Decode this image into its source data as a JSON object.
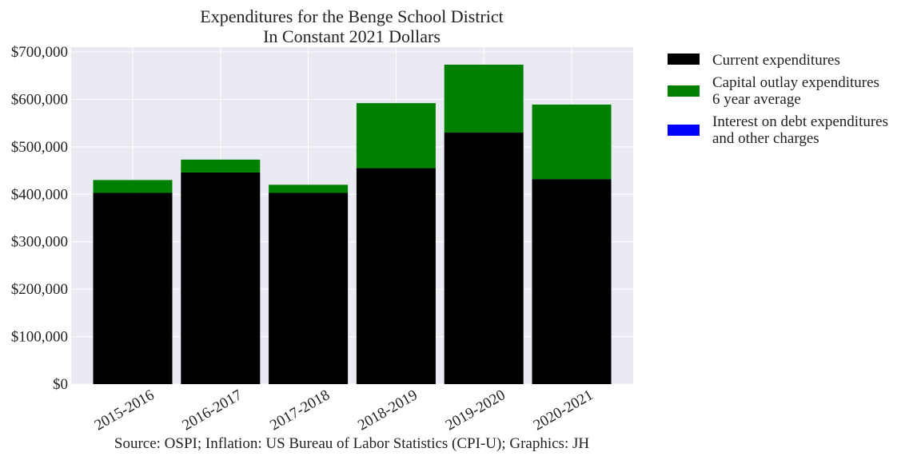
{
  "chart_data": {
    "type": "bar",
    "stacked": true,
    "title": [
      "Expenditures for the Benge School District",
      "In Constant 2021 Dollars"
    ],
    "categories": [
      "2015-2016",
      "2016-2017",
      "2017-2018",
      "2018-2019",
      "2019-2020",
      "2020-2021"
    ],
    "series": [
      {
        "name": "Current expenditures",
        "color": "#000000",
        "values": [
          403000,
          446000,
          403000,
          455000,
          530000,
          432000
        ]
      },
      {
        "name": "Capital outlay expenditures",
        "name_line2": "6 year average",
        "color": "#008000",
        "values": [
          27000,
          27000,
          17000,
          137000,
          143000,
          157000
        ]
      },
      {
        "name": "Interest on debt expenditures",
        "name_line2": "and other charges",
        "color": "#0000ff",
        "values": [
          0,
          0,
          0,
          0,
          0,
          0
        ]
      }
    ],
    "ylim": [
      0,
      710000
    ],
    "yticks": [
      0,
      100000,
      200000,
      300000,
      400000,
      500000,
      600000,
      700000
    ],
    "ytick_labels": [
      "$0",
      "$100,000",
      "$200,000",
      "$300,000",
      "$400,000",
      "$500,000",
      "$600,000",
      "$700,000"
    ],
    "grid": true,
    "legend": "outside-right",
    "source": "Source: OSPI; Inflation: US Bureau of Labor Statistics (CPI-U); Graphics: JH"
  }
}
